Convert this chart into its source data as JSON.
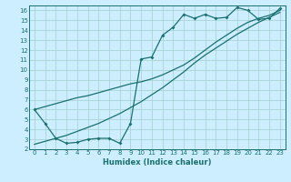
{
  "xlabel": "Humidex (Indice chaleur)",
  "bg_color": "#cceeff",
  "grid_color": "#aad4d4",
  "line_color": "#1a7070",
  "xlim": [
    -0.5,
    23.5
  ],
  "ylim": [
    2,
    16.5
  ],
  "xticks": [
    0,
    1,
    2,
    3,
    4,
    5,
    6,
    7,
    8,
    9,
    10,
    11,
    12,
    13,
    14,
    15,
    16,
    17,
    18,
    19,
    20,
    21,
    22,
    23
  ],
  "yticks": [
    2,
    3,
    4,
    5,
    6,
    7,
    8,
    9,
    10,
    11,
    12,
    13,
    14,
    15,
    16
  ],
  "line1_x": [
    0,
    1,
    2,
    3,
    4,
    5,
    6,
    7,
    8,
    9,
    10,
    11,
    12,
    13,
    14,
    15,
    16,
    17,
    18,
    19,
    20,
    21,
    22,
    23
  ],
  "line1_y": [
    6.0,
    4.6,
    3.1,
    2.6,
    2.7,
    3.0,
    3.1,
    3.1,
    2.6,
    4.6,
    11.1,
    11.3,
    13.5,
    14.3,
    15.6,
    15.2,
    15.6,
    15.2,
    15.3,
    16.3,
    16.0,
    15.1,
    15.2,
    16.2
  ],
  "line2_x": [
    0,
    1,
    2,
    3,
    4,
    5,
    6,
    7,
    8,
    9,
    10,
    11,
    12,
    13,
    14,
    15,
    16,
    17,
    18,
    19,
    20,
    21,
    22,
    23
  ],
  "line2_y": [
    6.0,
    6.3,
    6.6,
    6.9,
    7.2,
    7.4,
    7.7,
    8.0,
    8.3,
    8.6,
    8.8,
    9.1,
    9.5,
    10.0,
    10.5,
    11.2,
    12.0,
    12.8,
    13.5,
    14.2,
    14.8,
    15.2,
    15.5,
    16.0
  ],
  "line3_x": [
    0,
    1,
    2,
    3,
    4,
    5,
    6,
    7,
    8,
    9,
    10,
    11,
    12,
    13,
    14,
    15,
    16,
    17,
    18,
    19,
    20,
    21,
    22,
    23
  ],
  "line3_y": [
    2.5,
    2.8,
    3.1,
    3.4,
    3.8,
    4.2,
    4.6,
    5.1,
    5.6,
    6.2,
    6.8,
    7.5,
    8.2,
    9.0,
    9.8,
    10.7,
    11.5,
    12.2,
    12.9,
    13.6,
    14.2,
    14.8,
    15.3,
    15.8
  ]
}
